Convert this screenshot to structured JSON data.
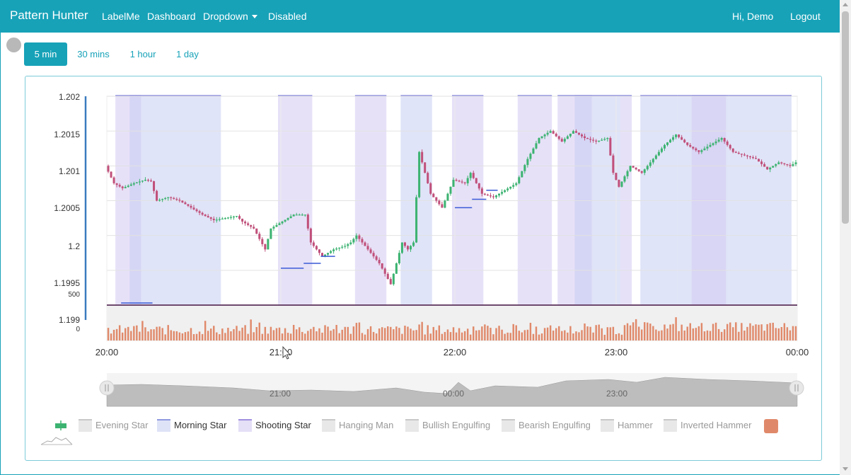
{
  "navbar": {
    "brand": "Pattern Hunter",
    "links": [
      "LabelMe",
      "Dashboard",
      "Dropdown",
      "Disabled"
    ],
    "greeting": "Hi, Demo",
    "logout": "Logout"
  },
  "timeframes": [
    "5 min",
    "30 mins",
    "1 hour",
    "1 day"
  ],
  "active_timeframe": "5 min",
  "legend": [
    {
      "label": "Evening Star",
      "color": "#e8e8e8",
      "active": false
    },
    {
      "label": "Morning Star",
      "color": "#dfe3f7",
      "active": true
    },
    {
      "label": "Shooting Star",
      "color": "#e5dff7",
      "active": true
    },
    {
      "label": "Hanging Man",
      "color": "#e8e8e8",
      "active": false
    },
    {
      "label": "Bullish Engulfing",
      "color": "#e8e8e8",
      "active": false
    },
    {
      "label": "Bearish Engulfing",
      "color": "#e8e8e8",
      "active": false
    },
    {
      "label": "Hammer",
      "color": "#e8e8e8",
      "active": false
    },
    {
      "label": "Inverted Hammer",
      "color": "#e8e8e8",
      "active": false
    }
  ],
  "colors": {
    "accent": "#17a2b8",
    "up_candle": "#3cb371",
    "down_candle": "#c0507a",
    "volume": "#e0896a",
    "morning_star_band": "#c6cdf2",
    "shooting_star_band": "#d3c9f2"
  },
  "chart_data": {
    "type": "candlestick",
    "y_ticks": [
      "1.202",
      "1.2015",
      "1.201",
      "1.2005",
      "1.2",
      "1.1995",
      "1.199"
    ],
    "ylim": [
      1.199,
      1.202
    ],
    "volume_ticks": [
      "500",
      "0"
    ],
    "x_ticks": [
      "20:00",
      "21:00",
      "22:00",
      "23:00",
      "00:00"
    ],
    "navigator_ticks": [
      "21:00",
      "00:00",
      "23:00"
    ],
    "close_path": [
      [
        0,
        1.201
      ],
      [
        3,
        1.20075
      ],
      [
        6,
        1.20068
      ],
      [
        10,
        1.20075
      ],
      [
        14,
        1.2008
      ],
      [
        16,
        1.20078
      ],
      [
        18,
        1.2005
      ],
      [
        22,
        1.20055
      ],
      [
        26,
        1.2005
      ],
      [
        30,
        1.2004
      ],
      [
        34,
        1.2003
      ],
      [
        38,
        1.20022
      ],
      [
        42,
        1.20025
      ],
      [
        46,
        1.20028
      ],
      [
        48,
        1.2002
      ],
      [
        52,
        1.2001
      ],
      [
        56,
        1.1998
      ],
      [
        58,
        1.2001
      ],
      [
        62,
        1.2002
      ],
      [
        66,
        1.2003
      ],
      [
        70,
        1.2003
      ],
      [
        72,
        1.1999
      ],
      [
        76,
        1.1997
      ],
      [
        80,
        1.1998
      ],
      [
        84,
        1.19985
      ],
      [
        86,
        1.1999
      ],
      [
        88,
        1.2
      ],
      [
        92,
        1.1998
      ],
      [
        96,
        1.1996
      ],
      [
        100,
        1.1993
      ],
      [
        102,
        1.1996
      ],
      [
        104,
        1.1999
      ],
      [
        106,
        1.1998
      ],
      [
        108,
        1.1999
      ],
      [
        110,
        1.2012
      ],
      [
        114,
        1.2006
      ],
      [
        118,
        1.2004
      ],
      [
        122,
        1.2008
      ],
      [
        126,
        1.20075
      ],
      [
        128,
        1.2009
      ],
      [
        132,
        1.2006
      ],
      [
        136,
        1.20055
      ],
      [
        140,
        1.20065
      ],
      [
        144,
        1.20075
      ],
      [
        148,
        1.2011
      ],
      [
        152,
        1.2014
      ],
      [
        156,
        1.2015
      ],
      [
        160,
        1.20135
      ],
      [
        164,
        1.2015
      ],
      [
        168,
        1.2014
      ],
      [
        172,
        1.20135
      ],
      [
        176,
        1.2014
      ],
      [
        178,
        1.2009
      ],
      [
        180,
        1.2007
      ],
      [
        184,
        1.201
      ],
      [
        188,
        1.2009
      ],
      [
        192,
        1.2011
      ],
      [
        196,
        1.2013
      ],
      [
        200,
        1.20145
      ],
      [
        204,
        1.2013
      ],
      [
        208,
        1.2012
      ],
      [
        212,
        1.2013
      ],
      [
        216,
        1.2014
      ],
      [
        220,
        1.2012
      ],
      [
        224,
        1.20115
      ],
      [
        228,
        1.2011
      ],
      [
        232,
        1.20095
      ],
      [
        236,
        1.20105
      ],
      [
        240,
        1.201
      ],
      [
        242,
        1.20105
      ]
    ],
    "bars_total": 242,
    "patterns": [
      {
        "type": "Shooting Star",
        "start": 3,
        "end": 12
      },
      {
        "type": "Morning Star",
        "start": 8,
        "end": 40
      },
      {
        "type": "Shooting Star",
        "start": 60,
        "end": 72
      },
      {
        "type": "Shooting Star",
        "start": 87,
        "end": 98
      },
      {
        "type": "Morning Star",
        "start": 103,
        "end": 114
      },
      {
        "type": "Shooting Star",
        "start": 121,
        "end": 132
      },
      {
        "type": "Shooting Star",
        "start": 144,
        "end": 156
      },
      {
        "type": "Shooting Star",
        "start": 158,
        "end": 170
      },
      {
        "type": "Morning Star",
        "start": 164,
        "end": 180
      },
      {
        "type": "Shooting Star",
        "start": 180,
        "end": 184
      },
      {
        "type": "Morning Star",
        "start": 187,
        "end": 200
      },
      {
        "type": "Morning Star",
        "start": 200,
        "end": 218
      },
      {
        "type": "Shooting Star",
        "start": 205,
        "end": 217
      },
      {
        "type": "Morning Star",
        "start": 218,
        "end": 240
      }
    ],
    "morning_star_markers": [
      {
        "start": 5,
        "end": 16,
        "value": 1.19903
      },
      {
        "start": 61,
        "end": 69,
        "value": 1.19953
      },
      {
        "start": 69,
        "end": 75,
        "value": 1.1996
      },
      {
        "start": 75,
        "end": 80,
        "value": 1.1997
      },
      {
        "start": 122,
        "end": 128,
        "value": 1.2004
      },
      {
        "start": 128,
        "end": 133,
        "value": 1.20052
      },
      {
        "start": 133,
        "end": 137,
        "value": 1.20065
      }
    ]
  }
}
